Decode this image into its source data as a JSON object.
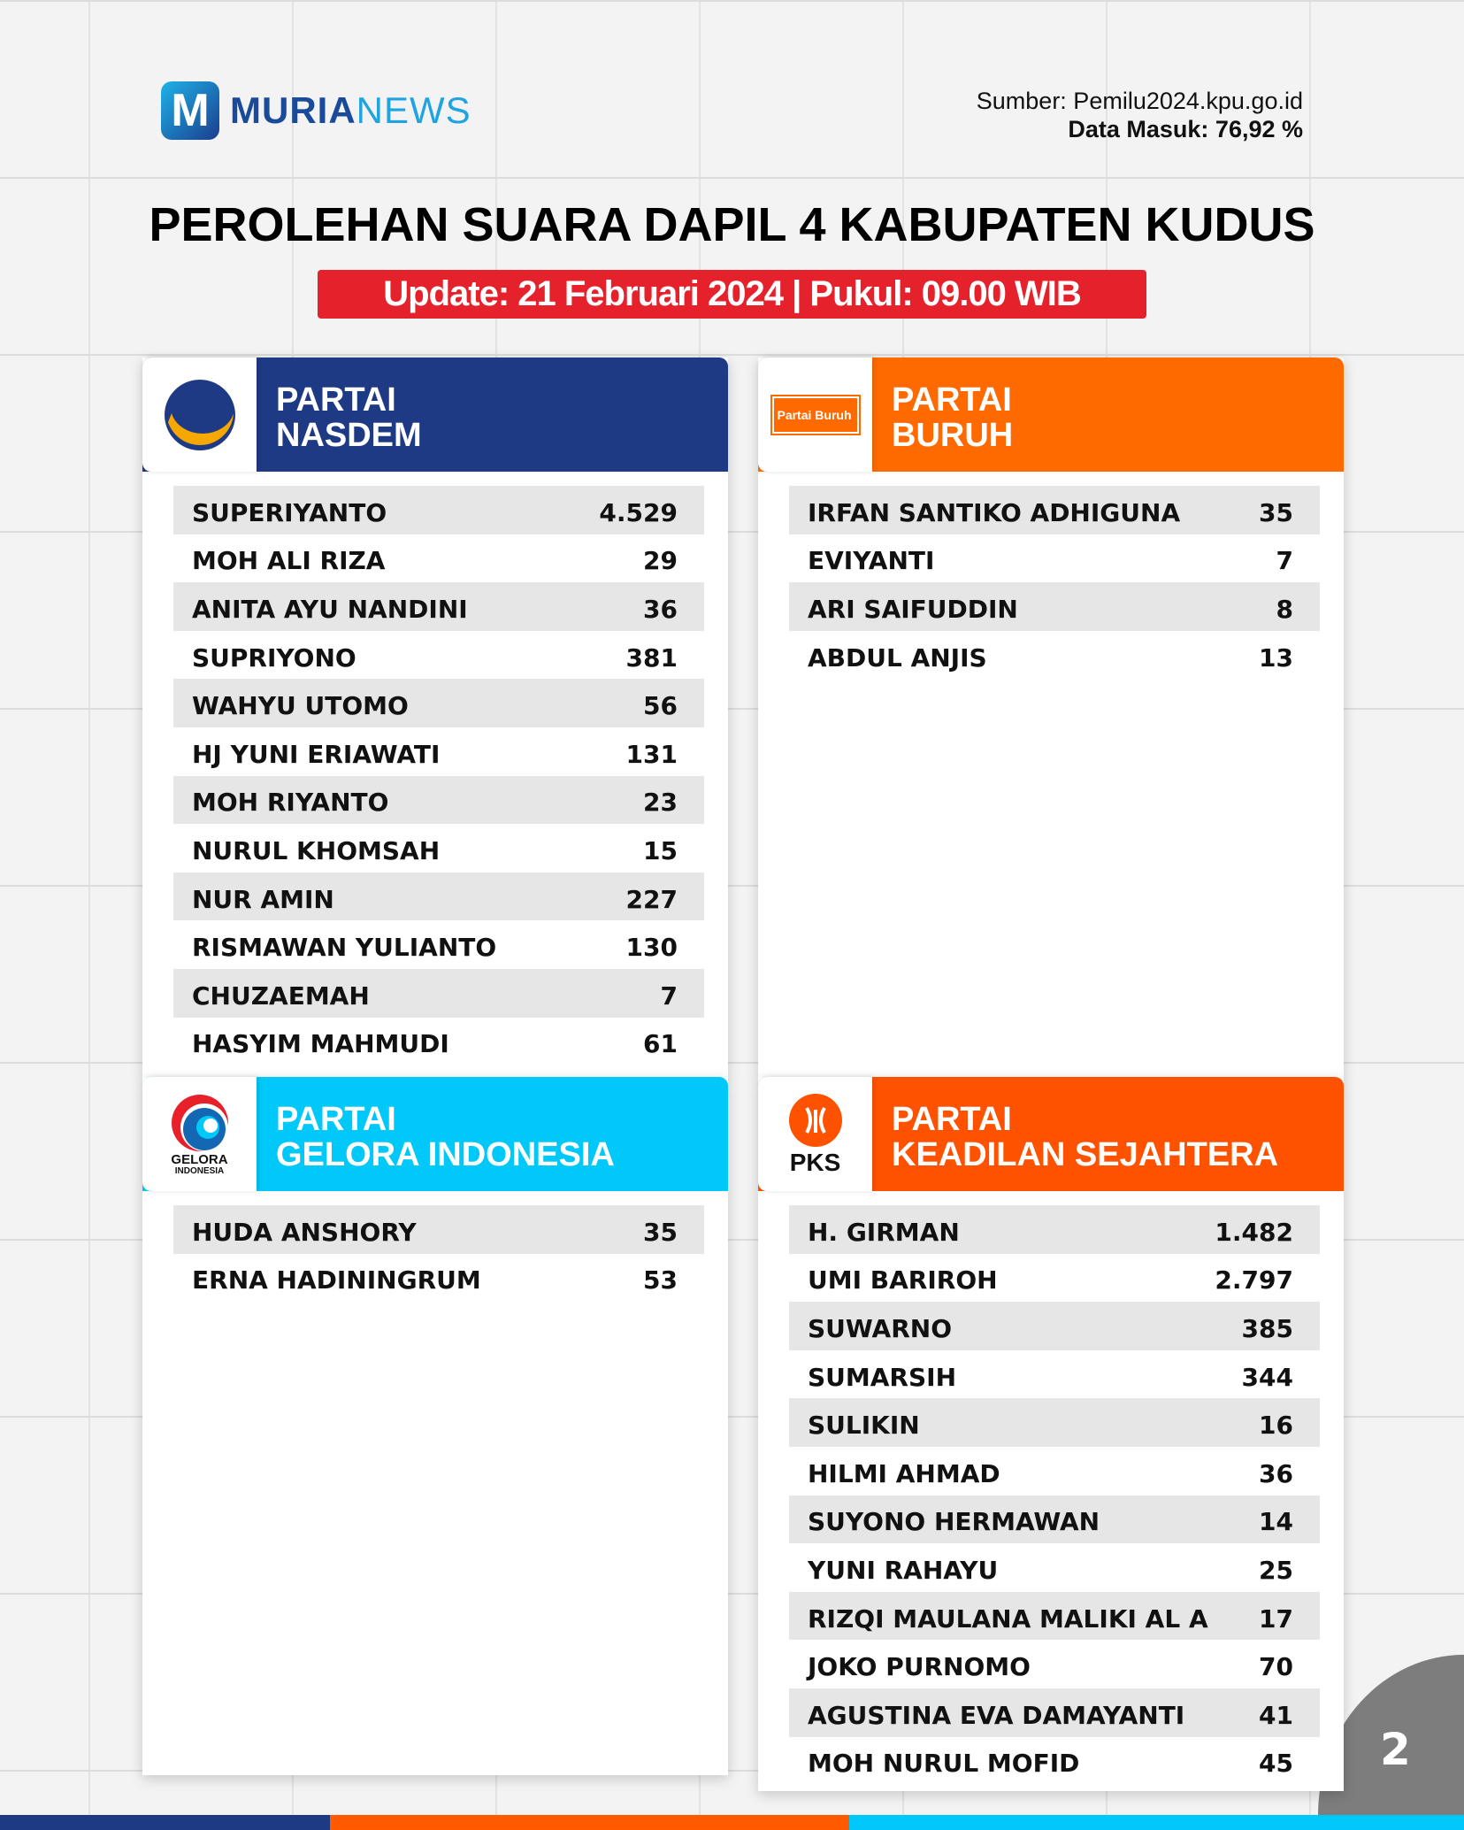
{
  "brand": {
    "mark": "M",
    "name_a": "MURIA",
    "name_b": "NEWS"
  },
  "source": {
    "line1": "Sumber: Pemilu2024.kpu.go.id",
    "line2": "Data Masuk: 76,92 %"
  },
  "title": "PEROLEHAN SUARA DAPIL 4 KABUPATEN KUDUS",
  "update": "Update: 21 Februari 2024 | Pukul: 09.00 WIB",
  "page_number": "2",
  "colors": {
    "nasdem": "#1f3a84",
    "buruh": "#ff6a00",
    "gelora": "#00c8f8",
    "pks": "#ff5200",
    "banner": "#e5222b"
  },
  "parties": [
    {
      "line1": "PARTAI",
      "line2": "NASDEM",
      "logo": "nasdem-logo",
      "candidates": [
        [
          "SUPERIYANTO",
          "4.529"
        ],
        [
          "MOH ALI RIZA",
          "29"
        ],
        [
          "ANITA AYU NANDINI",
          "36"
        ],
        [
          "SUPRIYONO",
          "381"
        ],
        [
          "WAHYU UTOMO",
          "56"
        ],
        [
          "HJ YUNI ERIAWATI",
          "131"
        ],
        [
          "MOH RIYANTO",
          "23"
        ],
        [
          "NURUL KHOMSAH",
          "15"
        ],
        [
          "NUR AMIN",
          "227"
        ],
        [
          "RISMAWAN YULIANTO",
          "130"
        ],
        [
          "CHUZAEMAH",
          "7"
        ],
        [
          "HASYIM MAHMUDI",
          "61"
        ]
      ]
    },
    {
      "line1": "PARTAI",
      "line2": "BURUH",
      "logo": "partai-buruh-logo",
      "logo_text": "Partai Buruh",
      "candidates": [
        [
          "IRFAN SANTIKO ADHIGUNA",
          "35"
        ],
        [
          "EVIYANTI",
          "7"
        ],
        [
          "ARI SAIFUDDIN",
          "8"
        ],
        [
          "ABDUL ANJIS",
          "13"
        ]
      ]
    },
    {
      "line1": "PARTAI",
      "line2": "GELORA INDONESIA",
      "logo": "gelora-logo",
      "logo_text": "GELORA",
      "logo_sub": "INDONESIA",
      "candidates": [
        [
          "HUDA ANSHORY",
          "35"
        ],
        [
          "ERNA HADININGRUM",
          "53"
        ]
      ]
    },
    {
      "line1": "PARTAI",
      "line2": "KEADILAN SEJAHTERA",
      "logo": "pks-logo",
      "logo_text": "PKS",
      "candidates": [
        [
          "H. GIRMAN",
          "1.482"
        ],
        [
          "UMI BARIROH",
          "2.797"
        ],
        [
          "SUWARNO",
          "385"
        ],
        [
          "SUMARSIH",
          "344"
        ],
        [
          "SULIKIN",
          "16"
        ],
        [
          "HILMI AHMAD",
          "36"
        ],
        [
          "SUYONO HERMAWAN",
          "14"
        ],
        [
          "YUNI RAHAYU",
          "25"
        ],
        [
          "RIZQI MAULANA MALIKI AL A",
          "17"
        ],
        [
          "JOKO PURNOMO",
          "70"
        ],
        [
          "AGUSTINA EVA DAMAYANTI",
          "41"
        ],
        [
          "MOH NURUL MOFID",
          "45"
        ]
      ]
    }
  ]
}
